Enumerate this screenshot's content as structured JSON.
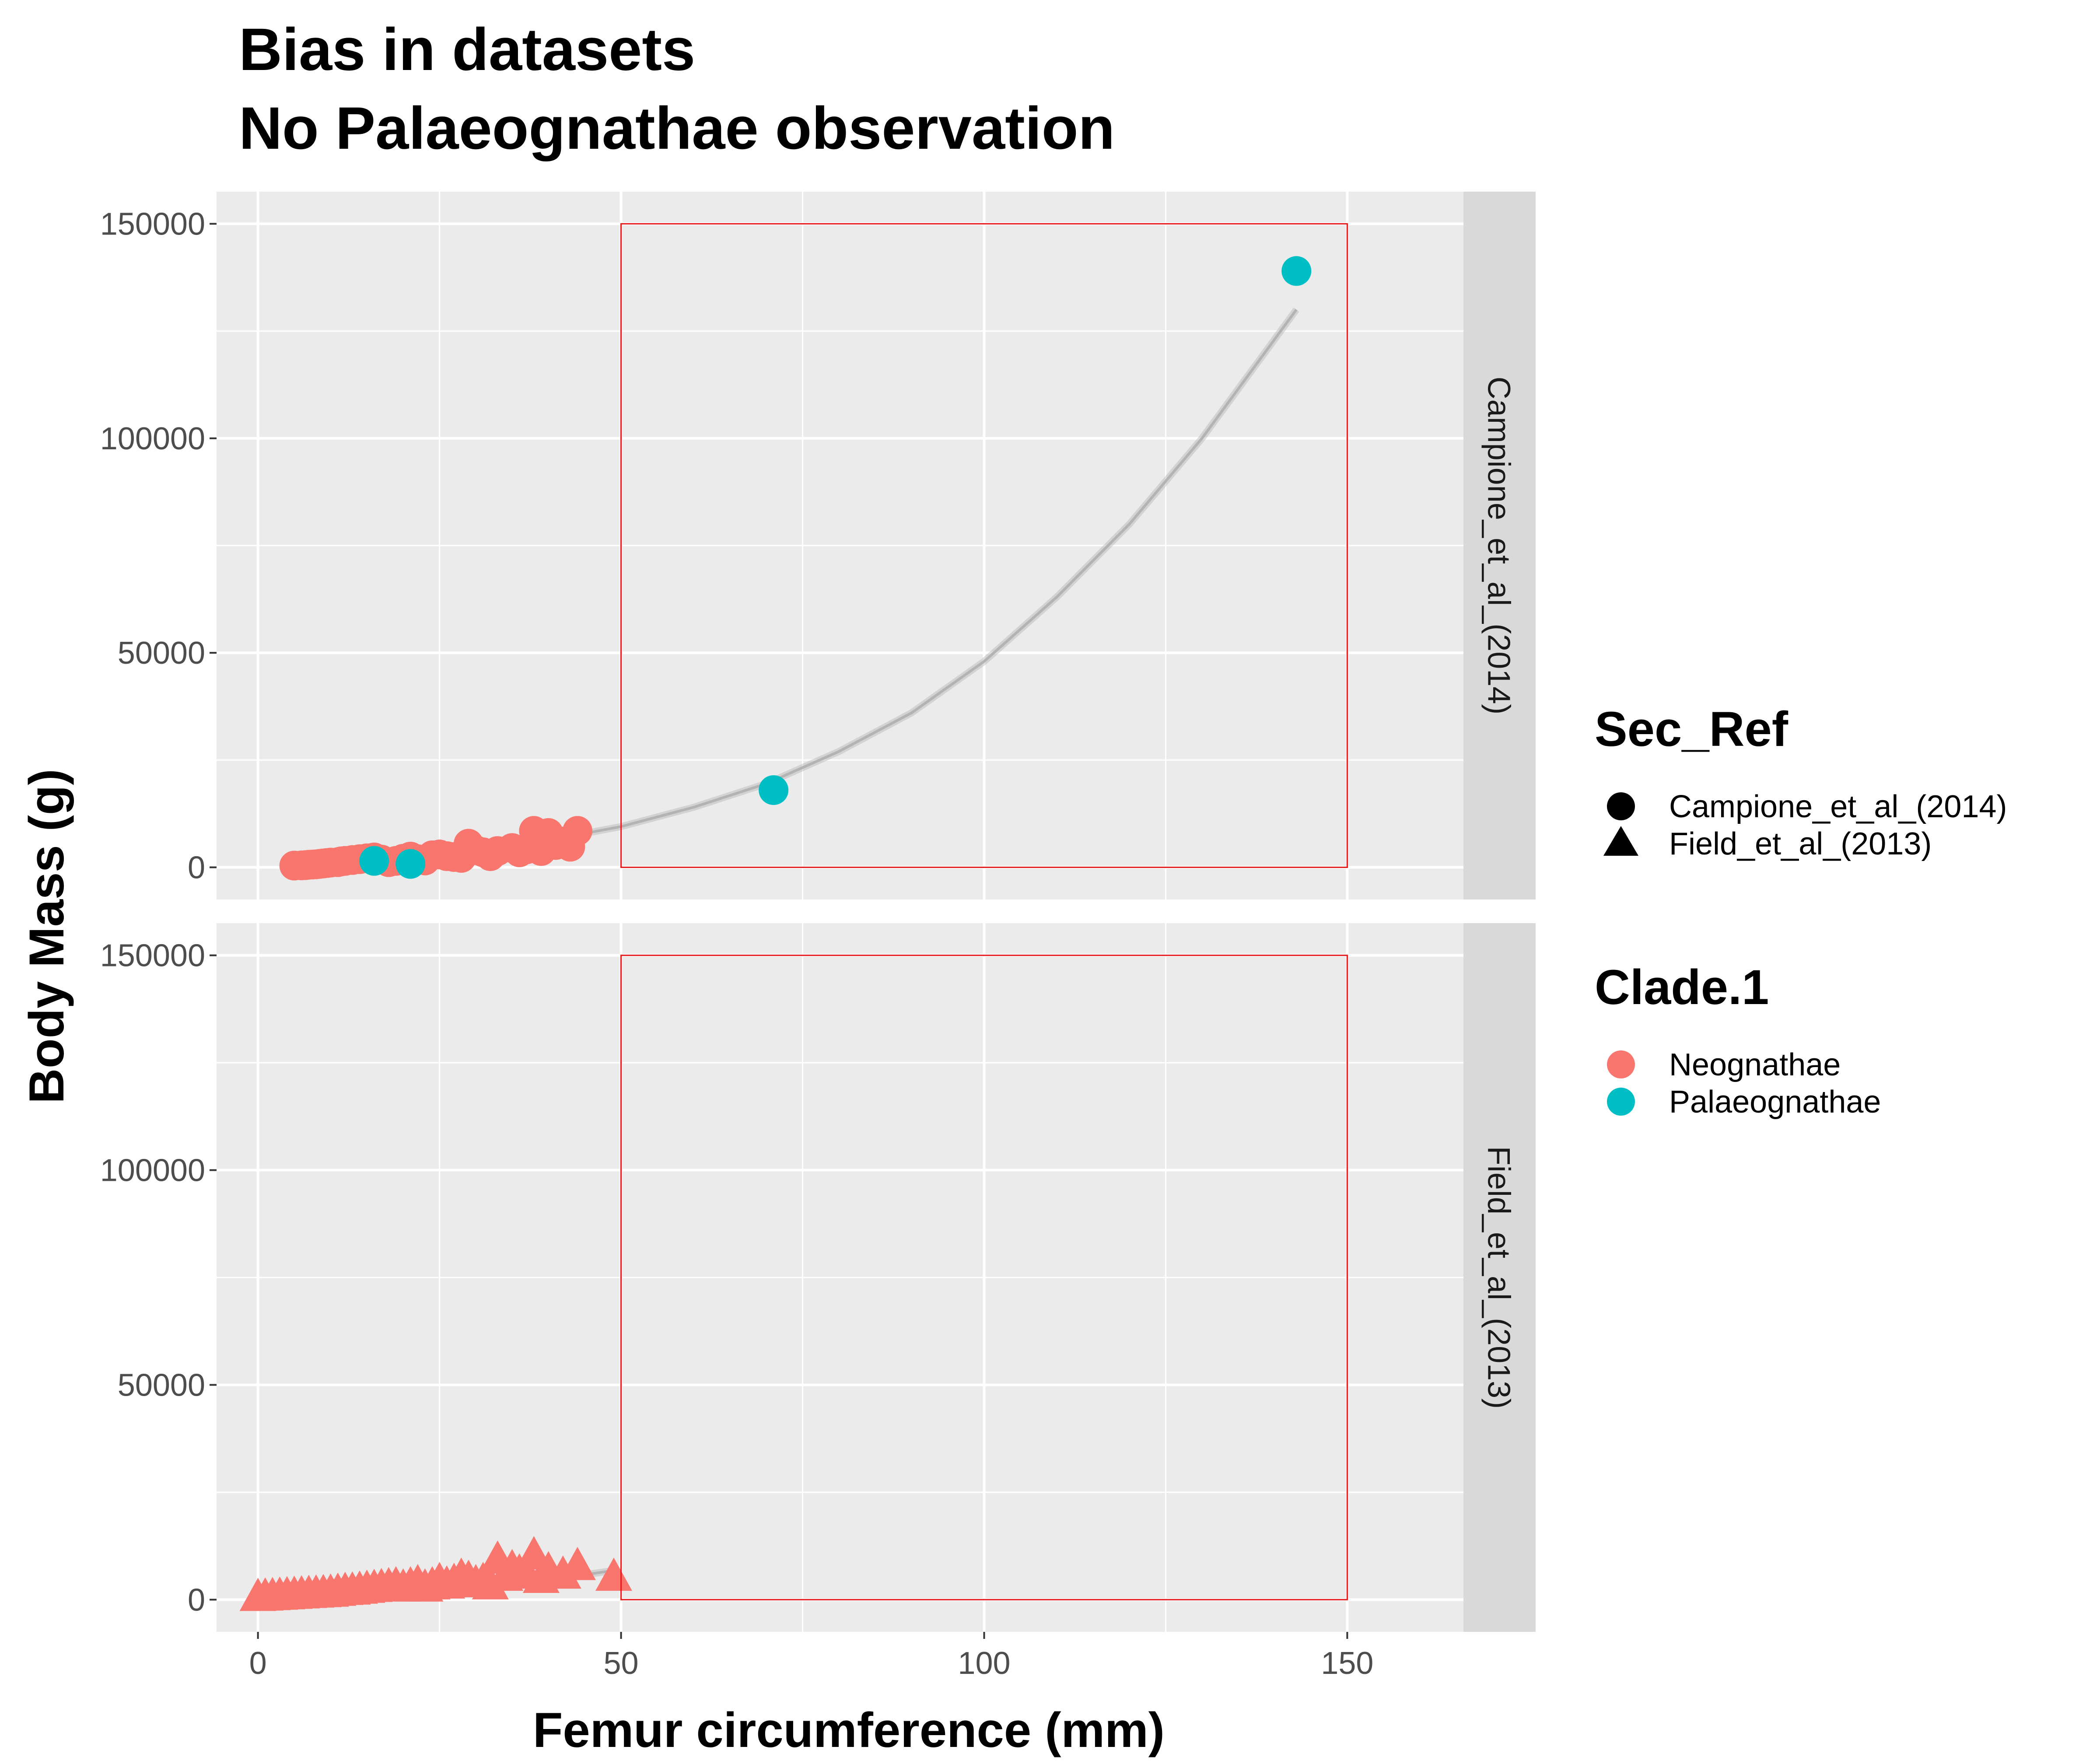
{
  "chart_data": {
    "type": "scatter",
    "title": "Bias in datasets\n No Palaeognathae observation",
    "xlabel": "Femur circumference (mm)",
    "ylabel": "Body Mass (g)",
    "xlim": [
      -5.7,
      166.0
    ],
    "ylim": [
      -7500,
      157500
    ],
    "x_ticks": [
      0,
      50,
      100,
      150
    ],
    "x_tick_labels": [
      "0",
      "50",
      "100",
      "150"
    ],
    "y_ticks": [
      0,
      50000,
      100000,
      150000
    ],
    "y_tick_labels": [
      "0",
      "50000",
      "100000",
      "150000"
    ],
    "grid": true,
    "facets": [
      "Campione_et_al_(2014)",
      "Field_et_al_(2013)"
    ],
    "highlight_box": {
      "x": [
        50,
        150
      ],
      "y": [
        0,
        150000
      ],
      "color": "#e41a1c"
    },
    "colors": {
      "Neognathae": "#f8766d",
      "Palaeognathae": "#00bfc4",
      "fit_line": "#b3b3b3",
      "panel_bg": "#ebebeb",
      "strip_bg": "#d9d9d9"
    },
    "legends": [
      {
        "title": "Sec_Ref",
        "entries": [
          {
            "label": "Campione_et_al_(2014)",
            "shape": "circle"
          },
          {
            "label": "Field_et_al_(2013)",
            "shape": "triangle"
          }
        ]
      },
      {
        "title": "Clade.1",
        "entries": [
          {
            "label": "Neognathae",
            "color": "#f8766d"
          },
          {
            "label": "Palaeognathae",
            "color": "#00bfc4"
          }
        ]
      }
    ],
    "legend_position": "right",
    "series": [
      {
        "facet": "Campione_et_al_(2014)",
        "clade": "Neognathae",
        "shape": "circle",
        "x": [
          5,
          6,
          6.5,
          7,
          7.5,
          8,
          8.5,
          9,
          9.5,
          10,
          11,
          11.5,
          12,
          13,
          14,
          15,
          16,
          17,
          18,
          19,
          20,
          21,
          22,
          23,
          24,
          25,
          26,
          27,
          28,
          29,
          30,
          31,
          32,
          33,
          35,
          36,
          37,
          38,
          38.5,
          39,
          40,
          41,
          42,
          43,
          44
        ],
        "y": [
          400,
          450,
          500,
          600,
          650,
          700,
          800,
          900,
          1000,
          1100,
          1200,
          1400,
          1500,
          1700,
          1900,
          2100,
          2300,
          1800,
          1200,
          1500,
          2000,
          2500,
          1900,
          1600,
          2800,
          3000,
          2600,
          2400,
          2200,
          5500,
          4000,
          3500,
          2600,
          3800,
          4500,
          3500,
          4200,
          8500,
          5000,
          3800,
          8000,
          5200,
          6000,
          4800,
          8500
        ]
      },
      {
        "facet": "Campione_et_al_(2014)",
        "clade": "Palaeognathae",
        "shape": "circle",
        "x": [
          16,
          21,
          71,
          143
        ],
        "y": [
          1500,
          800,
          18000,
          139000
        ]
      },
      {
        "facet": "Field_et_al_(2013)",
        "clade": "Neognathae",
        "shape": "triangle",
        "x": [
          0,
          1,
          2,
          3,
          4,
          5,
          6,
          7,
          8,
          9,
          10,
          11,
          12,
          13,
          14,
          15,
          16,
          17,
          18,
          19,
          20,
          21,
          22,
          23,
          24,
          25,
          26,
          27,
          28,
          29,
          30,
          31,
          32,
          33,
          34,
          35,
          36,
          37,
          38,
          39,
          40,
          42,
          44,
          49
        ],
        "y": [
          300,
          400,
          500,
          600,
          700,
          800,
          900,
          1000,
          1100,
          1200,
          1300,
          1500,
          1700,
          1800,
          2000,
          2200,
          2400,
          2600,
          2800,
          3000,
          2500,
          3000,
          3500,
          2500,
          3000,
          4000,
          3200,
          3800,
          5000,
          4500,
          3500,
          4000,
          3000,
          9000,
          5000,
          7000,
          6000,
          5500,
          10000,
          4500,
          6500,
          5500,
          7500,
          5000
        ]
      }
    ],
    "fit_lines": [
      {
        "facet": "Campione_et_al_(2014)",
        "x": [
          6,
          10,
          20,
          30,
          40,
          50,
          60,
          70,
          80,
          90,
          100,
          110,
          120,
          130,
          143
        ],
        "y": [
          300,
          700,
          2000,
          4000,
          6300,
          9500,
          14000,
          19500,
          27000,
          36000,
          48000,
          63000,
          80000,
          100000,
          130000
        ]
      },
      {
        "facet": "Field_et_al_(2013)",
        "x": [
          5,
          10,
          15,
          20,
          25,
          30,
          35,
          40,
          45,
          49
        ],
        "y": [
          250,
          550,
          1000,
          1500,
          2100,
          2800,
          3700,
          4700,
          5800,
          6800
        ]
      }
    ]
  }
}
